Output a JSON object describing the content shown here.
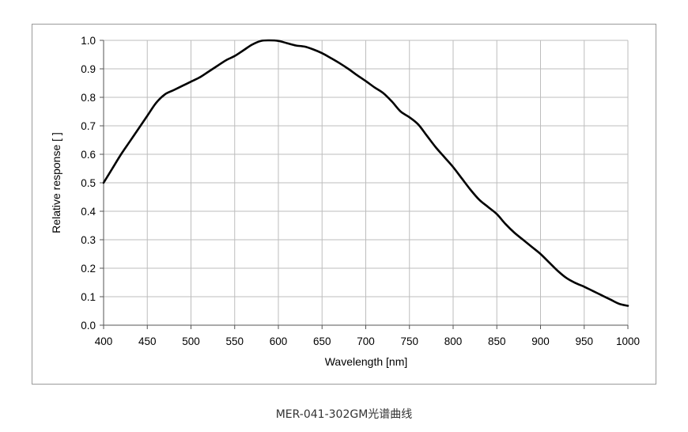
{
  "chart_data": {
    "type": "line",
    "title": "",
    "xlabel": "Wavelength [nm]",
    "ylabel": "Relative response [ ]",
    "xlim": [
      400,
      1000
    ],
    "ylim": [
      0,
      1.0
    ],
    "xticks": [
      400,
      450,
      500,
      550,
      600,
      650,
      700,
      750,
      800,
      850,
      900,
      950,
      1000
    ],
    "yticks": [
      0.0,
      0.1,
      0.2,
      0.3,
      0.4,
      0.5,
      0.6,
      0.7,
      0.8,
      0.9,
      1.0
    ],
    "ytick_labels": [
      "0.0",
      "0.1",
      "0.2",
      "0.3",
      "0.4",
      "0.5",
      "0.6",
      "0.7",
      "0.8",
      "0.9",
      "1.0"
    ],
    "grid": true,
    "legend": "none",
    "line_color": "#000000",
    "grid_color": "#bdbdbd",
    "series": [
      {
        "x": [
          400,
          410,
          420,
          430,
          440,
          450,
          460,
          470,
          480,
          490,
          500,
          510,
          520,
          530,
          540,
          550,
          560,
          570,
          580,
          590,
          600,
          610,
          620,
          630,
          640,
          650,
          660,
          670,
          680,
          690,
          700,
          710,
          720,
          730,
          740,
          750,
          760,
          770,
          780,
          790,
          800,
          810,
          820,
          830,
          840,
          850,
          860,
          870,
          880,
          890,
          900,
          910,
          920,
          930,
          940,
          950,
          960,
          970,
          980,
          990,
          1000
        ],
        "y": [
          0.5,
          0.55,
          0.6,
          0.645,
          0.69,
          0.735,
          0.78,
          0.81,
          0.825,
          0.84,
          0.855,
          0.87,
          0.89,
          0.91,
          0.93,
          0.945,
          0.965,
          0.985,
          0.998,
          1.0,
          0.998,
          0.99,
          0.982,
          0.978,
          0.968,
          0.955,
          0.938,
          0.92,
          0.9,
          0.878,
          0.857,
          0.835,
          0.815,
          0.785,
          0.75,
          0.73,
          0.705,
          0.665,
          0.625,
          0.59,
          0.555,
          0.515,
          0.475,
          0.44,
          0.415,
          0.39,
          0.355,
          0.325,
          0.3,
          0.275,
          0.25,
          0.22,
          0.19,
          0.165,
          0.148,
          0.135,
          0.12,
          0.105,
          0.09,
          0.075,
          0.068
        ]
      }
    ]
  },
  "caption": "MER-041-302GM光谱曲线"
}
